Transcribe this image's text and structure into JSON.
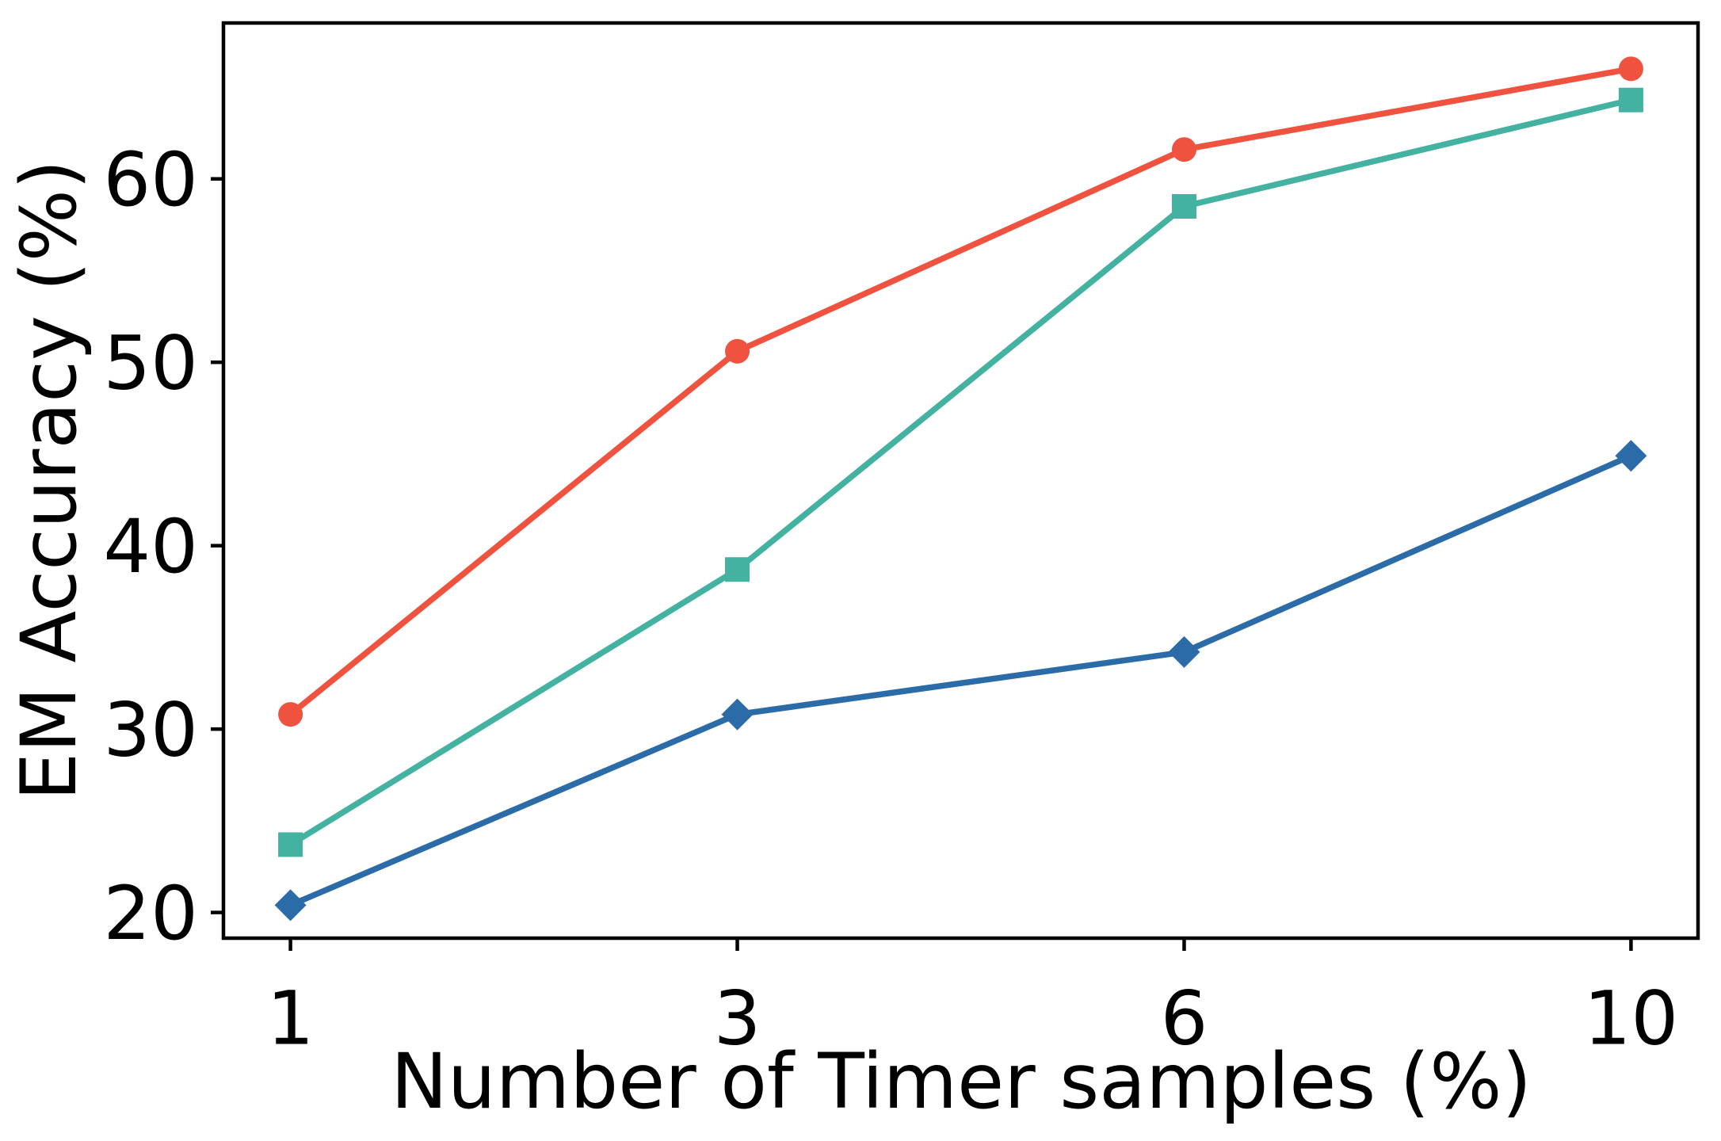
{
  "figure": {
    "background": "#ffffff",
    "axis_color": "#000000"
  },
  "chart_data": {
    "type": "line",
    "title": "",
    "xlabel": "Number of Timer samples (%)",
    "ylabel": "EM Accuracy (%)",
    "x_values": [
      1,
      3,
      6,
      10
    ],
    "x_tick_labels": [
      "1",
      "3",
      "6",
      "10"
    ],
    "y_ticks": [
      20,
      30,
      40,
      50,
      60
    ],
    "ylim": [
      18.6,
      68.5
    ],
    "grid": false,
    "legend_position": "none",
    "series": [
      {
        "name": "red-circle-series",
        "marker": "circle",
        "color": "#EF5340",
        "values": [
          30.8,
          50.6,
          61.6,
          66.0
        ]
      },
      {
        "name": "teal-square-series",
        "marker": "square",
        "color": "#44B2A0",
        "values": [
          23.7,
          38.7,
          58.5,
          64.3
        ]
      },
      {
        "name": "blue-diamond-series",
        "marker": "diamond",
        "color": "#2B6CA8",
        "values": [
          20.4,
          30.8,
          34.2,
          44.9
        ]
      }
    ]
  }
}
